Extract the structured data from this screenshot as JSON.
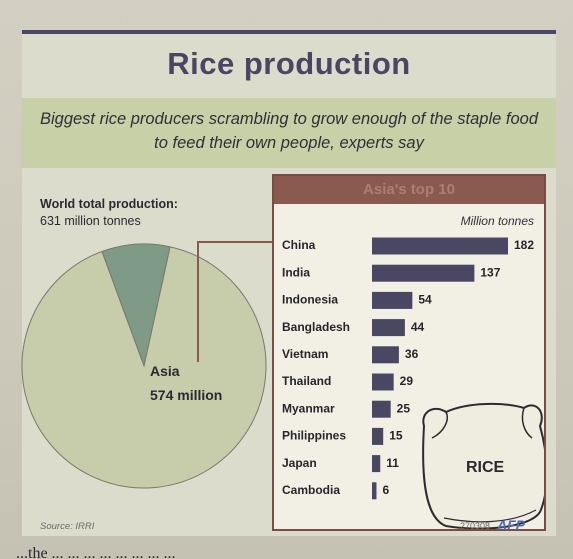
{
  "chart_data": [
    {
      "type": "pie",
      "title": "Rice production",
      "subtitle": "Biggest rice producers scrambling to grow enough of the staple food to feed their own people, experts say",
      "total_label": "World total production:",
      "total_value": "631 million tonnes",
      "slices": [
        {
          "name": "Asia",
          "value": 574,
          "label": "574 million",
          "color": "#c7ccab"
        },
        {
          "name": "",
          "value": 57,
          "color": "#7f9a86"
        }
      ]
    },
    {
      "type": "bar",
      "orientation": "horizontal",
      "title": "Asia's top 10",
      "unit_label": "Million tonnes",
      "categories": [
        "China",
        "India",
        "Indonesia",
        "Bangladesh",
        "Vietnam",
        "Thailand",
        "Myanmar",
        "Philippines",
        "Japan",
        "Cambodia"
      ],
      "values": [
        182,
        137,
        54,
        44,
        36,
        29,
        25,
        15,
        11,
        6
      ],
      "bar_color": "#4a4763",
      "xlim": [
        0,
        182
      ]
    }
  ],
  "decor": {
    "bag_label": "RICE"
  },
  "footer": {
    "source": "Source: IRRI",
    "code": "270308",
    "agency": "AFP"
  },
  "below_text": "...the ... ... ... ... ... ... ... ..."
}
